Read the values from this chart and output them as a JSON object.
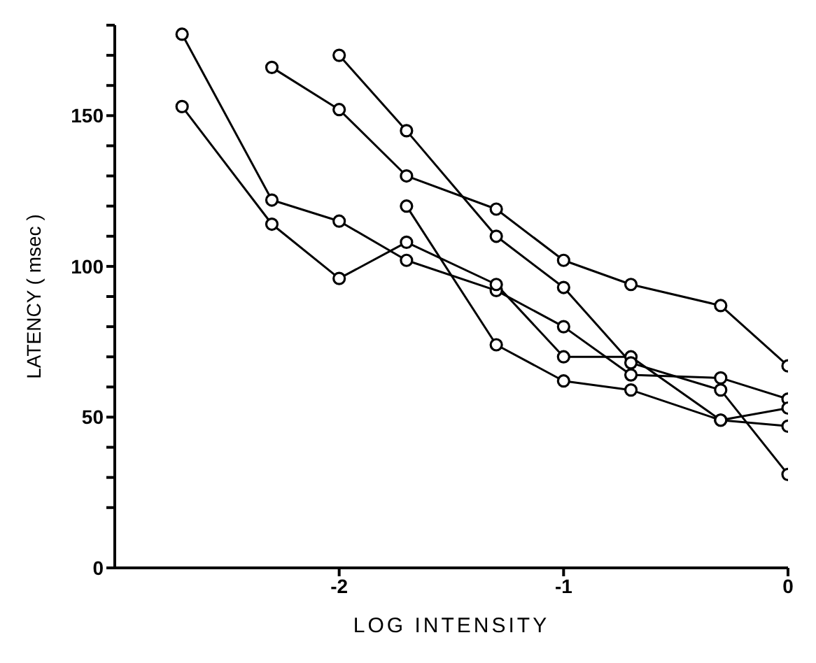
{
  "chart_data": {
    "type": "line",
    "xlabel": "LOG INTENSITY",
    "ylabel": "LATENCY ( msec )",
    "series": [
      {
        "color": "#000000",
        "x": [
          -2.7,
          -2.3,
          -2,
          -1.7,
          -1.3,
          -1,
          -0.7,
          -0.3,
          0
        ],
        "values": [
          177,
          122,
          115,
          102,
          92,
          80,
          64,
          63,
          56
        ]
      },
      {
        "color": "#000000",
        "x": [
          -2.7,
          -2.3,
          -2,
          -1.7,
          -1.3,
          -1,
          -0.7,
          -0.3,
          0
        ],
        "values": [
          153,
          114,
          96,
          108,
          94,
          70,
          70,
          49,
          47
        ]
      },
      {
        "color": "#000000",
        "x": [
          -2.3,
          -2,
          -1.7,
          -1.3,
          -1,
          -0.7,
          -0.3,
          0
        ],
        "values": [
          166,
          152,
          130,
          119,
          102,
          94,
          87,
          67
        ]
      },
      {
        "color": "#000000",
        "x": [
          -2,
          -1.7,
          -1.3,
          -1,
          -0.7,
          -0.3,
          0
        ],
        "values": [
          170,
          145,
          110,
          93,
          68,
          59,
          31
        ]
      },
      {
        "color": "#000000",
        "x": [
          -1.7,
          -1.3,
          -1,
          -0.7,
          -0.3,
          0
        ],
        "values": [
          120,
          74,
          62,
          59,
          49,
          53
        ]
      }
    ],
    "xlim": [
      -3,
      0
    ],
    "xticks": [
      -2,
      -1,
      0
    ],
    "ylim": [
      0,
      180
    ],
    "yticks": [
      0,
      {
        "value": 20,
        "label": null
      },
      {
        "value": 30,
        "label": null
      },
      {
        "value": 40,
        "label": null
      },
      50,
      {
        "value": 60,
        "label": null
      },
      {
        "value": 70,
        "label": null
      },
      {
        "value": 80,
        "label": null
      },
      {
        "value": 90,
        "label": null
      },
      100,
      {
        "value": 110,
        "label": null
      },
      {
        "value": 120,
        "label": null
      },
      {
        "value": 130,
        "label": null
      },
      {
        "value": 140,
        "label": null
      },
      150,
      {
        "value": 160,
        "label": null
      },
      {
        "value": 170,
        "label": null
      },
      {
        "value": 180,
        "label": null
      }
    ],
    "marker": "circle",
    "line_style": "solid"
  }
}
